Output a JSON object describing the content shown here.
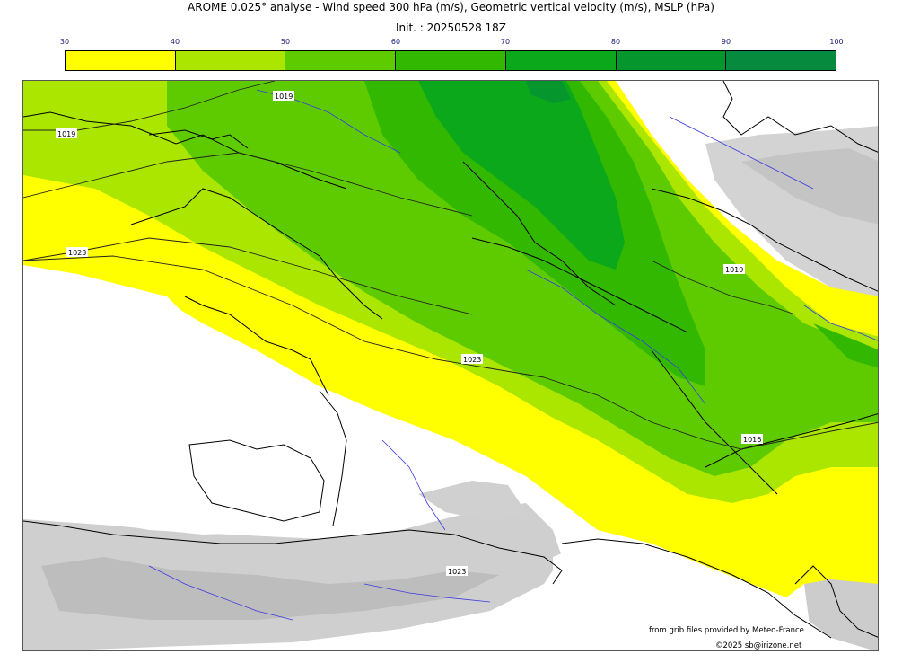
{
  "header": {
    "title": "AROME 0.025° analyse - Wind speed 300 hPa (m/s), Geometric vertical velocity (m/s), MSLP (hPa)",
    "init": "Init. : 20250528 18Z"
  },
  "colorbar": {
    "ticks": [
      "30",
      "40",
      "50",
      "60",
      "70",
      "80",
      "90",
      "100"
    ],
    "colors": [
      "#ffff00",
      "#aae600",
      "#5ecb00",
      "#33b800",
      "#0aa81a",
      "#05972e",
      "#058a3e",
      "#06774a"
    ]
  },
  "map": {
    "isobar_labels": [
      {
        "id": "iso-1019-nw",
        "text": "1019"
      },
      {
        "id": "iso-1019-w",
        "text": "1019"
      },
      {
        "id": "iso-1023-w",
        "text": "1023"
      },
      {
        "id": "iso-1019-e",
        "text": "1019"
      },
      {
        "id": "iso-1023-c",
        "text": "1023"
      },
      {
        "id": "iso-1016-se",
        "text": "1016"
      },
      {
        "id": "iso-1023-s",
        "text": "1023"
      }
    ]
  },
  "credits": {
    "line1": "from grib files provided by Meteo-France",
    "line2": "©2025 sb@irizone.net"
  }
}
